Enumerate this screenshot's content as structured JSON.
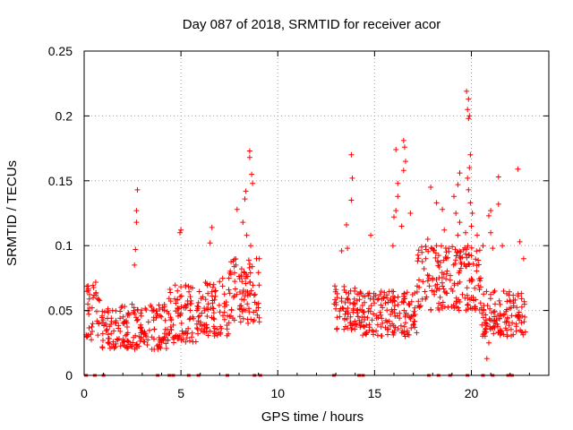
{
  "chart_data": {
    "type": "scatter",
    "title": "Day 087 of 2018, SRMTID for receiver acor",
    "xlabel": "GPS time / hours",
    "ylabel": "SRMTID / TECUs",
    "xlim": [
      0,
      24
    ],
    "ylim": [
      0,
      0.25
    ],
    "x_ticks": [
      0,
      5,
      10,
      15,
      20
    ],
    "x_tick_labels": [
      "0",
      "5",
      "10",
      "15",
      "20"
    ],
    "y_ticks": [
      0,
      0.05,
      0.1,
      0.15,
      0.2,
      0.25
    ],
    "y_tick_labels": [
      "0",
      "0.05",
      "0.1",
      "0.15",
      "0.2",
      "0.25"
    ],
    "grid": true,
    "marker": "+",
    "color": "#ff0000",
    "clusters": [
      {
        "x": [
          0.1,
          0.8
        ],
        "y": [
          0.025,
          0.075
        ]
      },
      {
        "x": [
          0.9,
          4.3
        ],
        "y": [
          0.02,
          0.055
        ]
      },
      {
        "x": [
          4.3,
          6.2
        ],
        "y": [
          0.025,
          0.07
        ]
      },
      {
        "x": [
          6.2,
          7.5
        ],
        "y": [
          0.03,
          0.075
        ]
      },
      {
        "x": [
          7.5,
          9.1
        ],
        "y": [
          0.04,
          0.09
        ]
      },
      {
        "x": [
          12.9,
          14.3
        ],
        "y": [
          0.035,
          0.07
        ]
      },
      {
        "x": [
          14.3,
          17.2
        ],
        "y": [
          0.03,
          0.065
        ]
      },
      {
        "x": [
          17.2,
          20.5
        ],
        "y": [
          0.05,
          0.1
        ]
      },
      {
        "x": [
          20.5,
          22.8
        ],
        "y": [
          0.03,
          0.065
        ]
      }
    ],
    "outliers": [
      {
        "x": 2.75,
        "y": 0.143
      },
      {
        "x": 2.7,
        "y": 0.127
      },
      {
        "x": 2.7,
        "y": 0.118
      },
      {
        "x": 2.65,
        "y": 0.097
      },
      {
        "x": 2.6,
        "y": 0.085
      },
      {
        "x": 5.0,
        "y": 0.112
      },
      {
        "x": 4.95,
        "y": 0.11
      },
      {
        "x": 6.6,
        "y": 0.114
      },
      {
        "x": 6.5,
        "y": 0.102
      },
      {
        "x": 8.55,
        "y": 0.173
      },
      {
        "x": 8.55,
        "y": 0.168
      },
      {
        "x": 8.65,
        "y": 0.155
      },
      {
        "x": 8.7,
        "y": 0.148
      },
      {
        "x": 8.35,
        "y": 0.142
      },
      {
        "x": 8.3,
        "y": 0.136
      },
      {
        "x": 7.9,
        "y": 0.128
      },
      {
        "x": 8.2,
        "y": 0.118
      },
      {
        "x": 8.4,
        "y": 0.108
      },
      {
        "x": 8.6,
        "y": 0.1
      },
      {
        "x": 8.9,
        "y": 0.09
      },
      {
        "x": 13.8,
        "y": 0.17
      },
      {
        "x": 13.85,
        "y": 0.152
      },
      {
        "x": 13.8,
        "y": 0.135
      },
      {
        "x": 13.55,
        "y": 0.116
      },
      {
        "x": 13.6,
        "y": 0.098
      },
      {
        "x": 13.3,
        "y": 0.096
      },
      {
        "x": 14.8,
        "y": 0.108
      },
      {
        "x": 16.1,
        "y": 0.174
      },
      {
        "x": 16.5,
        "y": 0.181
      },
      {
        "x": 16.55,
        "y": 0.176
      },
      {
        "x": 16.6,
        "y": 0.165
      },
      {
        "x": 16.5,
        "y": 0.158
      },
      {
        "x": 16.2,
        "y": 0.148
      },
      {
        "x": 16.2,
        "y": 0.138
      },
      {
        "x": 16.1,
        "y": 0.127
      },
      {
        "x": 16.0,
        "y": 0.122
      },
      {
        "x": 16.85,
        "y": 0.125
      },
      {
        "x": 16.4,
        "y": 0.115
      },
      {
        "x": 15.95,
        "y": 0.1
      },
      {
        "x": 17.9,
        "y": 0.145
      },
      {
        "x": 18.2,
        "y": 0.133
      },
      {
        "x": 18.5,
        "y": 0.128
      },
      {
        "x": 18.6,
        "y": 0.112
      },
      {
        "x": 17.75,
        "y": 0.105
      },
      {
        "x": 18.2,
        "y": 0.1
      },
      {
        "x": 19.1,
        "y": 0.138
      },
      {
        "x": 19.2,
        "y": 0.125
      },
      {
        "x": 19.4,
        "y": 0.118
      },
      {
        "x": 19.3,
        "y": 0.147
      },
      {
        "x": 19.4,
        "y": 0.156
      },
      {
        "x": 19.3,
        "y": 0.108
      },
      {
        "x": 19.75,
        "y": 0.219
      },
      {
        "x": 19.85,
        "y": 0.213
      },
      {
        "x": 19.8,
        "y": 0.205
      },
      {
        "x": 19.85,
        "y": 0.198
      },
      {
        "x": 19.9,
        "y": 0.2
      },
      {
        "x": 19.95,
        "y": 0.17
      },
      {
        "x": 19.9,
        "y": 0.16
      },
      {
        "x": 19.8,
        "y": 0.152
      },
      {
        "x": 19.85,
        "y": 0.143
      },
      {
        "x": 19.95,
        "y": 0.133
      },
      {
        "x": 20.05,
        "y": 0.125
      },
      {
        "x": 20.0,
        "y": 0.115
      },
      {
        "x": 20.3,
        "y": 0.108
      },
      {
        "x": 20.6,
        "y": 0.1
      },
      {
        "x": 19.7,
        "y": 0.11
      },
      {
        "x": 21.0,
        "y": 0.127
      },
      {
        "x": 20.9,
        "y": 0.123
      },
      {
        "x": 21.0,
        "y": 0.11
      },
      {
        "x": 21.4,
        "y": 0.153
      },
      {
        "x": 21.4,
        "y": 0.132
      },
      {
        "x": 21.6,
        "y": 0.1
      },
      {
        "x": 21.1,
        "y": 0.098
      },
      {
        "x": 22.4,
        "y": 0.159
      },
      {
        "x": 22.5,
        "y": 0.103
      },
      {
        "x": 22.7,
        "y": 0.09
      },
      {
        "x": 20.8,
        "y": 0.013
      },
      {
        "x": 20.9,
        "y": 0.025
      }
    ],
    "gap_markers_at_zero": [
      0.1,
      0.55,
      1.0,
      3.8,
      4.4,
      4.6,
      5.4,
      5.9,
      7.4,
      8.8,
      9.1,
      12.9,
      14.2,
      14.4,
      17.8,
      18.3,
      18.9,
      19.8,
      20.6,
      21.1,
      21.9,
      22.1
    ]
  }
}
